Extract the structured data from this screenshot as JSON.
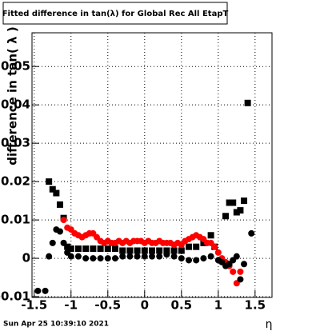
{
  "chart_data": {
    "type": "scatter",
    "title": "Fitted difference in tan(λ) for Global Rec All EtapT",
    "y_label": "difference in tan( λ )",
    "x_label": "η",
    "footer": "Sun Apr 25 10:39:10 2021",
    "xlim": [
      -1.53,
      1.73
    ],
    "ylim": [
      -0.0102,
      0.0588
    ],
    "xticks": [
      -1.5,
      -1,
      -0.5,
      0,
      0.5,
      1,
      1.5
    ],
    "yticks": [
      -0.01,
      0,
      0.01,
      0.02,
      0.03,
      0.04,
      0.05
    ],
    "grid": true,
    "series": [
      {
        "color": "#000000",
        "marker": "square",
        "x": [
          -1.3,
          -1.25,
          -1.2,
          -1.15,
          -1.1,
          -1.05,
          -1.0,
          -0.9,
          -0.8,
          -0.7,
          -0.6,
          -0.5,
          -0.4,
          -0.3,
          -0.2,
          -0.1,
          0,
          0.1,
          0.2,
          0.3,
          0.4,
          0.5,
          0.6,
          0.7,
          0.8,
          0.9,
          0.95,
          1.1,
          1.15,
          1.2,
          1.25,
          1.3,
          1.35,
          1.4
        ],
        "values": [
          0.02,
          0.018,
          0.017,
          0.014,
          0.0105,
          0.003,
          0.0025,
          0.0025,
          0.0025,
          0.0025,
          0.0025,
          0.0025,
          0.0025,
          0.002,
          0.002,
          0.002,
          0.002,
          0.002,
          0.002,
          0.002,
          0.002,
          0.002,
          0.003,
          0.003,
          0.004,
          0.006,
          0.003,
          0.011,
          0.0145,
          0.0145,
          0.012,
          0.0125,
          0.015,
          0.0405
        ]
      },
      {
        "color": "#ff0000",
        "marker": "circle",
        "x": [
          -1.1,
          -1.05,
          -1.0,
          -0.95,
          -0.9,
          -0.85,
          -0.8,
          -0.75,
          -0.7,
          -0.65,
          -0.6,
          -0.55,
          -0.5,
          -0.45,
          -0.4,
          -0.35,
          -0.3,
          -0.25,
          -0.2,
          -0.15,
          -0.1,
          -0.05,
          0,
          0.05,
          0.1,
          0.15,
          0.2,
          0.25,
          0.3,
          0.35,
          0.4,
          0.45,
          0.5,
          0.55,
          0.6,
          0.65,
          0.7,
          0.75,
          0.8,
          0.85,
          0.9,
          0.95,
          1.0,
          1.05,
          1.1,
          1.15,
          1.2,
          1.25,
          1.3
        ],
        "values": [
          0.01,
          0.008,
          0.0075,
          0.0065,
          0.006,
          0.0055,
          0.006,
          0.0065,
          0.0065,
          0.0055,
          0.0045,
          0.004,
          0.0045,
          0.004,
          0.004,
          0.0045,
          0.004,
          0.0045,
          0.004,
          0.0045,
          0.0045,
          0.0045,
          0.004,
          0.0045,
          0.004,
          0.004,
          0.0045,
          0.004,
          0.004,
          0.004,
          0.0035,
          0.004,
          0.0035,
          0.0045,
          0.005,
          0.0055,
          0.006,
          0.0055,
          0.005,
          0.004,
          0.004,
          0.003,
          0.0015,
          0,
          -0.001,
          -0.002,
          -0.0035,
          -0.0065,
          -0.0035
        ]
      },
      {
        "color": "#000000",
        "marker": "circle",
        "x": [
          -1.45,
          -1.35,
          -1.3,
          -1.25,
          -1.2,
          -1.15,
          -1.1,
          -1.05,
          -1.0,
          -0.9,
          -0.8,
          -0.7,
          -0.6,
          -0.5,
          -0.4,
          -0.3,
          -0.2,
          -0.1,
          0,
          0.1,
          0.2,
          0.3,
          0.4,
          0.5,
          0.6,
          0.7,
          0.8,
          0.9,
          1.0,
          1.05,
          1.1,
          1.15,
          1.2,
          1.25,
          1.3,
          1.35,
          1.45
        ],
        "values": [
          -0.0085,
          -0.0085,
          0.0005,
          0.004,
          0.0075,
          0.007,
          0.004,
          0.0015,
          0.0005,
          0.0005,
          0,
          0,
          0,
          0,
          0,
          0.0005,
          0.0005,
          0.0005,
          0.0005,
          0.0005,
          0.0005,
          0.001,
          0.0005,
          0,
          -0.0005,
          -0.0005,
          0,
          0.0005,
          -0.0005,
          -0.001,
          -0.002,
          -0.0015,
          -0.0005,
          0.0005,
          -0.0055,
          -0.0015,
          0.0065
        ]
      }
    ]
  }
}
